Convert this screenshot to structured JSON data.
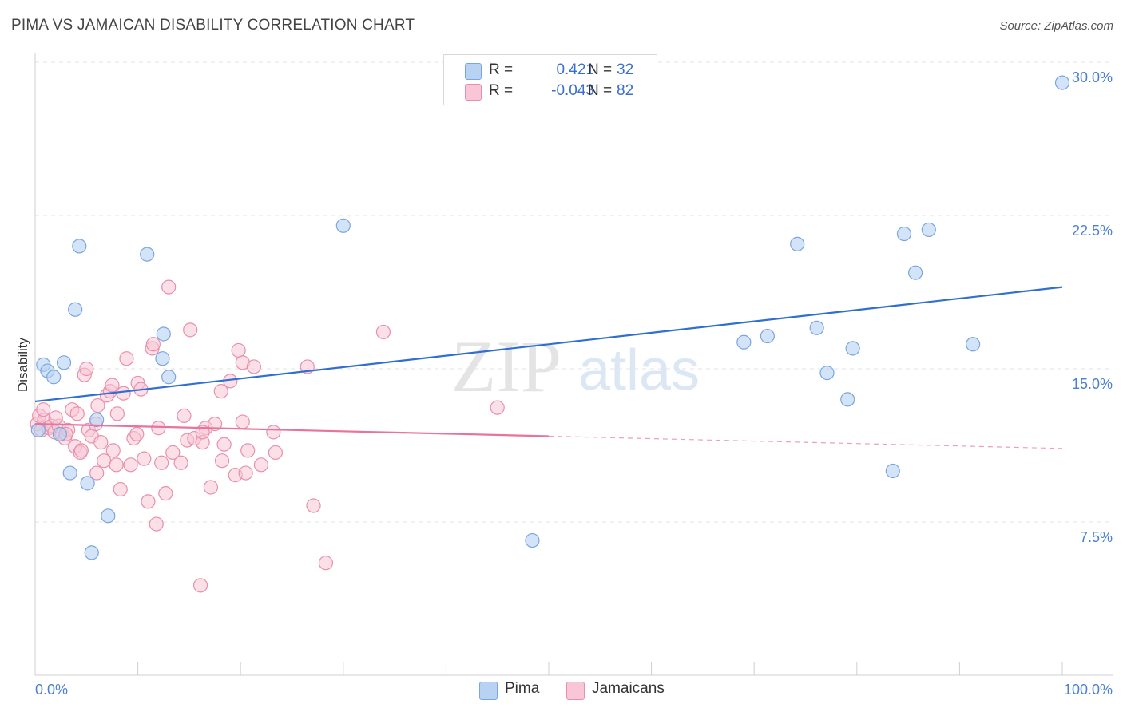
{
  "title": "PIMA VS JAMAICAN DISABILITY CORRELATION CHART",
  "source": "Source: ZipAtlas.com",
  "watermark": {
    "zip": "ZIP",
    "atlas": "atlas"
  },
  "legend": {
    "pima": {
      "r_key": "R =",
      "r_value": "0.421",
      "n_key": "N =",
      "n_value": "32"
    },
    "jamaicans": {
      "r_key": "R =",
      "r_value": "-0.043",
      "n_key": "N =",
      "n_value": "82"
    }
  },
  "colors": {
    "pima_fill": "#b8d2f3",
    "pima_stroke": "#7aa6df",
    "pima_line": "#2f6fd0",
    "jam_fill": "#f8c6d6",
    "jam_stroke": "#e98fac",
    "jam_line": "#e8739b",
    "tick_text": "#4a7fd4",
    "grid": "#e3e3e3"
  },
  "chart_data": {
    "type": "scatter",
    "ylabel": "Disability",
    "xlim": [
      0,
      100
    ],
    "ylim": [
      0,
      30.0
    ],
    "x_tick_labels": [
      "0.0%",
      "100.0%"
    ],
    "y_ticks": [
      7.5,
      15.0,
      22.5,
      30.0
    ],
    "y_tick_labels": [
      "7.5%",
      "15.0%",
      "22.5%",
      "30.0%"
    ],
    "grid": "horizontal dashed",
    "legend_position": "top-center",
    "series": [
      {
        "name": "Pima",
        "points": [
          [
            0.3,
            12.0
          ],
          [
            0.8,
            15.2
          ],
          [
            1.2,
            14.9
          ],
          [
            1.8,
            14.6
          ],
          [
            2.8,
            15.3
          ],
          [
            3.4,
            9.9
          ],
          [
            4.3,
            21.0
          ],
          [
            3.9,
            17.9
          ],
          [
            5.1,
            9.4
          ],
          [
            5.5,
            6.0
          ],
          [
            6.0,
            12.5
          ],
          [
            7.1,
            7.8
          ],
          [
            10.9,
            20.6
          ],
          [
            12.4,
            15.5
          ],
          [
            12.5,
            16.7
          ],
          [
            13.0,
            14.6
          ],
          [
            30.0,
            22.0
          ],
          [
            48.4,
            6.6
          ],
          [
            69.0,
            16.3
          ],
          [
            71.3,
            16.6
          ],
          [
            74.2,
            21.1
          ],
          [
            76.1,
            17.0
          ],
          [
            77.1,
            14.8
          ],
          [
            79.1,
            13.5
          ],
          [
            79.6,
            16.0
          ],
          [
            83.5,
            10.0
          ],
          [
            84.6,
            21.6
          ],
          [
            85.7,
            19.7
          ],
          [
            87.0,
            21.8
          ],
          [
            91.3,
            16.2
          ],
          [
            100.0,
            29.0
          ],
          [
            2.4,
            11.8
          ]
        ]
      },
      {
        "name": "Jamaicans",
        "points": [
          [
            0.2,
            12.3
          ],
          [
            0.4,
            12.7
          ],
          [
            0.6,
            12.0
          ],
          [
            0.9,
            12.5
          ],
          [
            1.3,
            12.1
          ],
          [
            1.6,
            12.2
          ],
          [
            1.9,
            11.9
          ],
          [
            2.3,
            12.2
          ],
          [
            2.6,
            11.8
          ],
          [
            2.9,
            11.6
          ],
          [
            3.2,
            12.0
          ],
          [
            3.6,
            13.0
          ],
          [
            3.9,
            11.2
          ],
          [
            4.1,
            12.8
          ],
          [
            4.4,
            10.9
          ],
          [
            4.8,
            14.7
          ],
          [
            5.2,
            12.0
          ],
          [
            5.5,
            11.7
          ],
          [
            5.9,
            12.3
          ],
          [
            6.1,
            13.2
          ],
          [
            6.4,
            11.4
          ],
          [
            6.7,
            10.5
          ],
          [
            7.0,
            13.7
          ],
          [
            7.3,
            13.9
          ],
          [
            7.6,
            11.0
          ],
          [
            8.0,
            12.8
          ],
          [
            8.3,
            9.1
          ],
          [
            8.6,
            13.8
          ],
          [
            8.9,
            15.5
          ],
          [
            9.3,
            10.3
          ],
          [
            9.6,
            11.6
          ],
          [
            10.0,
            14.3
          ],
          [
            10.3,
            14.0
          ],
          [
            10.6,
            10.6
          ],
          [
            11.0,
            8.5
          ],
          [
            11.4,
            16.0
          ],
          [
            11.8,
            7.4
          ],
          [
            12.3,
            10.4
          ],
          [
            12.7,
            8.9
          ],
          [
            13.0,
            19.0
          ],
          [
            13.4,
            10.9
          ],
          [
            14.2,
            10.4
          ],
          [
            14.8,
            11.5
          ],
          [
            15.1,
            16.9
          ],
          [
            15.5,
            11.6
          ],
          [
            16.3,
            11.4
          ],
          [
            16.1,
            4.4
          ],
          [
            16.6,
            12.1
          ],
          [
            17.1,
            9.2
          ],
          [
            17.5,
            12.3
          ],
          [
            18.1,
            13.9
          ],
          [
            18.4,
            11.3
          ],
          [
            19.0,
            14.4
          ],
          [
            19.5,
            9.8
          ],
          [
            19.8,
            15.9
          ],
          [
            20.2,
            15.3
          ],
          [
            20.5,
            9.9
          ],
          [
            20.7,
            11.0
          ],
          [
            21.3,
            15.1
          ],
          [
            22.0,
            10.3
          ],
          [
            23.2,
            11.9
          ],
          [
            23.4,
            10.9
          ],
          [
            26.5,
            15.1
          ],
          [
            27.1,
            8.3
          ],
          [
            28.3,
            5.5
          ],
          [
            33.9,
            16.8
          ],
          [
            45.0,
            13.1
          ],
          [
            4.5,
            11.0
          ],
          [
            6.0,
            9.9
          ],
          [
            7.9,
            10.3
          ],
          [
            9.9,
            11.8
          ],
          [
            12.0,
            12.1
          ],
          [
            14.5,
            12.7
          ],
          [
            16.3,
            11.9
          ],
          [
            18.2,
            10.5
          ],
          [
            20.2,
            12.4
          ],
          [
            0.8,
            13.0
          ],
          [
            2.0,
            12.6
          ],
          [
            3.0,
            11.8
          ],
          [
            5.0,
            15.0
          ],
          [
            7.5,
            14.2
          ],
          [
            11.5,
            16.2
          ]
        ]
      }
    ],
    "trend_lines": [
      {
        "name": "Pima",
        "x": [
          0,
          100
        ],
        "y": [
          13.4,
          19.0
        ]
      },
      {
        "name": "Jamaicans",
        "x": [
          0,
          50
        ],
        "y": [
          12.3,
          11.7
        ],
        "dashed_extension_x": [
          50,
          100
        ],
        "dashed_extension_y": [
          11.7,
          11.1
        ]
      }
    ]
  },
  "bottom_legend": {
    "pima": "Pima",
    "jamaicans": "Jamaicans"
  }
}
